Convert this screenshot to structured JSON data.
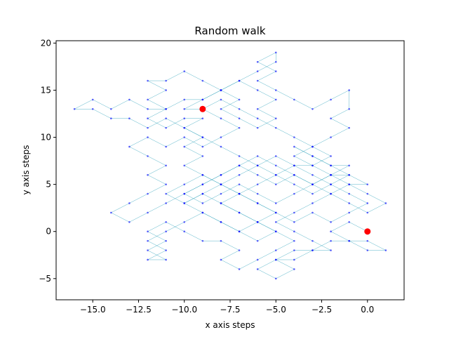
{
  "chart_data": {
    "type": "scatter",
    "title": "Random walk",
    "xlabel": "x axis steps",
    "ylabel": "y axis steps",
    "xlim": [
      -17,
      2
    ],
    "ylim": [
      -7.25,
      20.25
    ],
    "xticks": [
      -15,
      -12.5,
      -10,
      -7.5,
      -5,
      -2.5,
      0
    ],
    "xtick_labels": [
      "−15.0",
      "−12.5",
      "−10.0",
      "−7.5",
      "−5.0",
      "−2.5",
      "0.0"
    ],
    "yticks": [
      -5,
      0,
      5,
      10,
      15,
      20
    ],
    "ytick_labels": [
      "−5",
      "0",
      "5",
      "10",
      "15",
      "20"
    ],
    "grid": false,
    "colors": {
      "path": "#1f9bb5",
      "points": "#0000ff",
      "endpoints": "#ff0000"
    },
    "start_point": [
      0,
      0
    ],
    "end_point": [
      -9,
      13
    ],
    "path": [
      [
        0,
        0
      ],
      [
        -1,
        1
      ],
      [
        -2,
        0
      ],
      [
        -1,
        -1
      ],
      [
        0,
        -1
      ],
      [
        1,
        -2
      ],
      [
        0,
        -2
      ],
      [
        -1,
        -1
      ],
      [
        -2,
        -1
      ],
      [
        -3,
        -2
      ],
      [
        -4,
        -2
      ],
      [
        -5,
        -3
      ],
      [
        -6,
        -4
      ],
      [
        -5,
        -5
      ],
      [
        -4,
        -4
      ],
      [
        -5,
        -3
      ],
      [
        -4,
        -3
      ],
      [
        -3,
        -2
      ],
      [
        -2,
        -2
      ],
      [
        -3,
        -1
      ],
      [
        -4,
        0
      ],
      [
        -5,
        1
      ],
      [
        -4,
        2
      ],
      [
        -3,
        3
      ],
      [
        -2,
        4
      ],
      [
        -1,
        5
      ],
      [
        0,
        5
      ],
      [
        -1,
        6
      ],
      [
        -2,
        7
      ],
      [
        -3,
        8
      ],
      [
        -4,
        9
      ],
      [
        -3,
        8
      ],
      [
        -2,
        7
      ],
      [
        -1,
        7
      ],
      [
        -2,
        6
      ],
      [
        -3,
        5
      ],
      [
        -4,
        6
      ],
      [
        -5,
        5
      ],
      [
        -6,
        6
      ],
      [
        -7,
        7
      ],
      [
        -8,
        6
      ],
      [
        -9,
        5
      ],
      [
        -10,
        4
      ],
      [
        -9,
        3
      ],
      [
        -8,
        4
      ],
      [
        -7,
        5
      ],
      [
        -6,
        4
      ],
      [
        -5,
        3
      ],
      [
        -4,
        4
      ],
      [
        -3,
        5
      ],
      [
        -2,
        6
      ],
      [
        -1,
        6
      ],
      [
        -2,
        5
      ],
      [
        -3,
        4
      ],
      [
        -4,
        5
      ],
      [
        -5,
        6
      ],
      [
        -6,
        5
      ],
      [
        -7,
        4
      ],
      [
        -8,
        3
      ],
      [
        -7,
        2
      ],
      [
        -6,
        1
      ],
      [
        -5,
        0
      ],
      [
        -6,
        -1
      ],
      [
        -7,
        0
      ],
      [
        -8,
        1
      ],
      [
        -9,
        2
      ],
      [
        -10,
        1
      ],
      [
        -11,
        0
      ],
      [
        -12,
        -1
      ],
      [
        -11,
        -2
      ],
      [
        -12,
        -3
      ],
      [
        -11,
        -3
      ],
      [
        -12,
        -2
      ],
      [
        -11,
        -1
      ],
      [
        -12,
        0
      ],
      [
        -11,
        1
      ],
      [
        -10,
        0
      ],
      [
        -9,
        -1
      ],
      [
        -8,
        -1
      ],
      [
        -7,
        -2
      ],
      [
        -8,
        -3
      ],
      [
        -7,
        -4
      ],
      [
        -6,
        -3
      ],
      [
        -5,
        -2
      ],
      [
        -4,
        -1
      ],
      [
        -5,
        0
      ],
      [
        -6,
        1
      ],
      [
        -5,
        2
      ],
      [
        -6,
        3
      ],
      [
        -7,
        4
      ],
      [
        -8,
        5
      ],
      [
        -9,
        6
      ],
      [
        -10,
        7
      ],
      [
        -9,
        8
      ],
      [
        -10,
        9
      ],
      [
        -9,
        10
      ],
      [
        -10,
        11
      ],
      [
        -9,
        12
      ],
      [
        -10,
        12
      ],
      [
        -11,
        11
      ],
      [
        -12,
        12
      ],
      [
        -11,
        13
      ],
      [
        -12,
        14
      ],
      [
        -11,
        15
      ],
      [
        -12,
        16
      ],
      [
        -11,
        16
      ],
      [
        -10,
        17
      ],
      [
        -9,
        16
      ],
      [
        -8,
        15
      ],
      [
        -7,
        16
      ],
      [
        -6,
        15
      ],
      [
        -5,
        14
      ],
      [
        -6,
        13
      ],
      [
        -5,
        12
      ],
      [
        -6,
        11
      ],
      [
        -7,
        12
      ],
      [
        -8,
        13
      ],
      [
        -7,
        14
      ],
      [
        -8,
        15
      ],
      [
        -9,
        14
      ],
      [
        -10,
        13
      ],
      [
        -9,
        13
      ],
      [
        -8,
        12
      ],
      [
        -7,
        11
      ],
      [
        -8,
        10
      ],
      [
        -9,
        9
      ],
      [
        -10,
        10
      ],
      [
        -11,
        9
      ],
      [
        -12,
        10
      ],
      [
        -13,
        9
      ],
      [
        -12,
        8
      ],
      [
        -11,
        7
      ],
      [
        -12,
        6
      ],
      [
        -11,
        5
      ],
      [
        -12,
        4
      ],
      [
        -13,
        3
      ],
      [
        -14,
        2
      ],
      [
        -13,
        1
      ],
      [
        -12,
        2
      ],
      [
        -11,
        3
      ],
      [
        -10,
        4
      ],
      [
        -9,
        5
      ],
      [
        -8,
        6
      ],
      [
        -7,
        7
      ],
      [
        -6,
        8
      ],
      [
        -5,
        7
      ],
      [
        -4,
        6
      ],
      [
        -3,
        5
      ],
      [
        -2,
        4
      ],
      [
        -1,
        3
      ],
      [
        0,
        2
      ],
      [
        1,
        3
      ],
      [
        0,
        4
      ],
      [
        -1,
        5
      ],
      [
        -2,
        6
      ],
      [
        -3,
        7
      ],
      [
        -4,
        8
      ],
      [
        -3,
        9
      ],
      [
        -2,
        10
      ],
      [
        -1,
        11
      ],
      [
        -2,
        12
      ],
      [
        -1,
        13
      ],
      [
        -1,
        15
      ],
      [
        -2,
        14
      ],
      [
        -3,
        13
      ],
      [
        -4,
        14
      ],
      [
        -5,
        15
      ],
      [
        -6,
        16
      ],
      [
        -5,
        17
      ],
      [
        -6,
        18
      ],
      [
        -5,
        19
      ],
      [
        -5,
        18
      ],
      [
        -6,
        17
      ],
      [
        -7,
        16
      ],
      [
        -8,
        15
      ],
      [
        -9,
        14
      ],
      [
        -10,
        14
      ],
      [
        -11,
        13
      ],
      [
        -12,
        13
      ],
      [
        -13,
        14
      ],
      [
        -14,
        13
      ],
      [
        -15,
        14
      ],
      [
        -16,
        13
      ],
      [
        -15,
        13
      ],
      [
        -14,
        12
      ],
      [
        -13,
        12
      ],
      [
        -12,
        11
      ],
      [
        -11,
        12
      ],
      [
        -10,
        11
      ],
      [
        -9,
        10
      ],
      [
        -8,
        9
      ],
      [
        -7,
        8
      ],
      [
        -6,
        7
      ],
      [
        -5,
        6
      ],
      [
        -4,
        7
      ],
      [
        -3,
        6
      ],
      [
        -2,
        5
      ],
      [
        -1,
        4
      ],
      [
        0,
        3
      ],
      [
        -1,
        2
      ],
      [
        -2,
        1
      ],
      [
        -3,
        2
      ],
      [
        -4,
        1
      ],
      [
        -5,
        2
      ],
      [
        -6,
        3
      ],
      [
        -7,
        4
      ],
      [
        -8,
        5
      ],
      [
        -9,
        6
      ],
      [
        -10,
        5
      ],
      [
        -11,
        4
      ],
      [
        -10,
        3
      ],
      [
        -9,
        4
      ],
      [
        -8,
        3
      ],
      [
        -7,
        2
      ],
      [
        -6,
        1
      ],
      [
        -7,
        0
      ],
      [
        -8,
        1
      ],
      [
        -9,
        2
      ],
      [
        -10,
        3
      ],
      [
        -9,
        4
      ],
      [
        -8,
        5
      ],
      [
        -7,
        6
      ],
      [
        -6,
        7
      ],
      [
        -5,
        8
      ],
      [
        -4,
        7
      ],
      [
        -3,
        7
      ],
      [
        -2,
        8
      ],
      [
        -3,
        9
      ],
      [
        -4,
        10
      ],
      [
        -5,
        11
      ],
      [
        -6,
        12
      ],
      [
        -7,
        13
      ],
      [
        -8,
        14
      ],
      [
        -9,
        13
      ]
    ]
  }
}
